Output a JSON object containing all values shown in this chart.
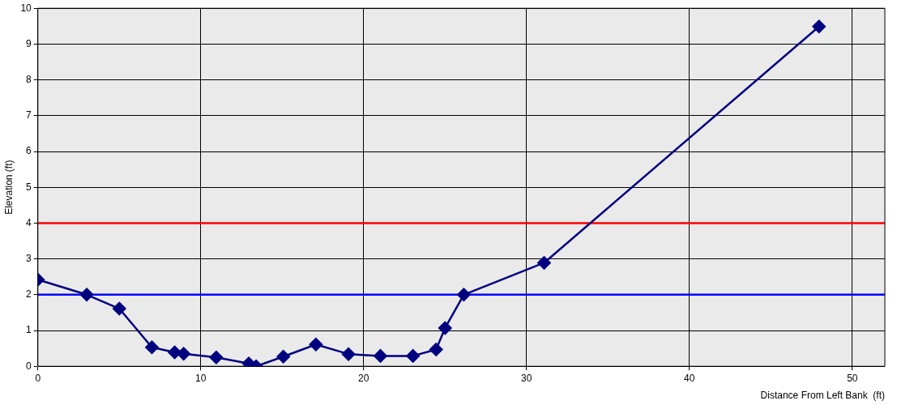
{
  "chart_data": {
    "type": "line",
    "xlabel": "Distance From Left Bank  (ft)",
    "ylabel": "Elevation (ft)",
    "x": [
      0,
      3,
      5,
      7,
      8.4,
      8.95,
      10.95,
      12.95,
      13.4,
      15.07,
      17.07,
      19.07,
      21.03,
      23.03,
      24.45,
      25,
      26.15,
      31.08,
      47.96
    ],
    "series": [
      {
        "color": "#000080",
        "values": [
          2.42,
          2.0,
          1.61,
          0.53,
          0.39,
          0.35,
          0.25,
          0.08,
          0.0,
          0.27,
          0.61,
          0.34,
          0.29,
          0.29,
          0.47,
          1.07,
          2.0,
          2.89,
          9.49
        ]
      }
    ],
    "xlim": [
      0,
      52
    ],
    "xticks": [
      0,
      10,
      20,
      30,
      40,
      50
    ],
    "ylim": [
      0,
      10
    ],
    "yticks": [
      0,
      1,
      2,
      3,
      4,
      5,
      6,
      7,
      8,
      9,
      10
    ],
    "ref_lines": [
      {
        "axis": "y",
        "value": 2,
        "color": "#0000ff"
      },
      {
        "axis": "y",
        "value": 4,
        "color": "#ff0000"
      }
    ],
    "grid": true,
    "marker": "diamond",
    "line_style": "solid",
    "legend": false
  }
}
